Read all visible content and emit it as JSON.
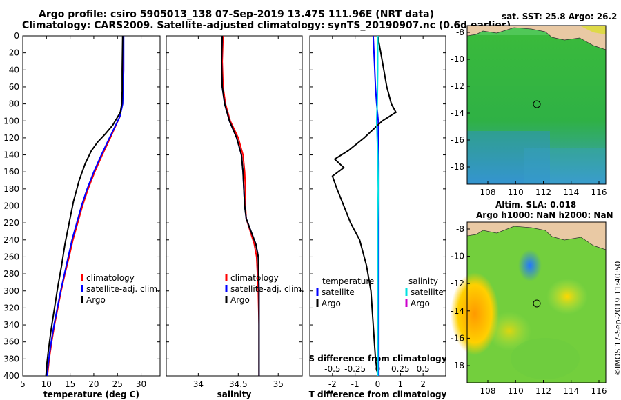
{
  "header": {
    "line1": "Argo profile: csiro 5905013_138 07-Sep-2019 13.47S 111.96E (NRT data)",
    "line2": "Climatology: CARS2009. Satellite-adjusted climatology: synTS_20190907.nc (0.6d earlier)"
  },
  "chart_data": [
    {
      "type": "line",
      "name": "temperature",
      "xlabel": "temperature (deg C)",
      "xlim": [
        5,
        34
      ],
      "xticks": [
        5,
        10,
        15,
        20,
        25,
        30
      ],
      "ylim": [
        400,
        0
      ],
      "yticks": [
        0,
        20,
        40,
        60,
        80,
        100,
        120,
        140,
        160,
        180,
        200,
        220,
        240,
        260,
        280,
        300,
        320,
        340,
        360,
        380,
        400
      ],
      "legend": [
        "climatology",
        "satellite-adj. clim.",
        "Argo"
      ],
      "series": [
        {
          "name": "climatology",
          "color": "#ff0000",
          "points": [
            [
              26.2,
              0
            ],
            [
              26.2,
              40
            ],
            [
              26.1,
              60
            ],
            [
              26.0,
              80
            ],
            [
              25.5,
              95
            ],
            [
              23.5,
              120
            ],
            [
              21.8,
              140
            ],
            [
              20.2,
              160
            ],
            [
              18.8,
              180
            ],
            [
              17.6,
              200
            ],
            [
              16.6,
              220
            ],
            [
              15.6,
              240
            ],
            [
              14.8,
              260
            ],
            [
              13.9,
              280
            ],
            [
              13.1,
              300
            ],
            [
              12.4,
              320
            ],
            [
              11.7,
              340
            ],
            [
              11.1,
              360
            ],
            [
              10.6,
              380
            ],
            [
              10.2,
              400
            ]
          ]
        },
        {
          "name": "satellite-adj. clim.",
          "color": "#0000ff",
          "points": [
            [
              26.3,
              0
            ],
            [
              26.3,
              40
            ],
            [
              26.2,
              60
            ],
            [
              26.1,
              80
            ],
            [
              25.5,
              95
            ],
            [
              23.3,
              120
            ],
            [
              21.6,
              140
            ],
            [
              20.0,
              160
            ],
            [
              18.6,
              180
            ],
            [
              17.4,
              200
            ],
            [
              16.4,
              220
            ],
            [
              15.4,
              240
            ],
            [
              14.6,
              260
            ],
            [
              13.8,
              280
            ],
            [
              13.0,
              300
            ],
            [
              12.3,
              320
            ],
            [
              11.6,
              340
            ],
            [
              11.0,
              360
            ],
            [
              10.5,
              380
            ],
            [
              10.1,
              400
            ]
          ]
        },
        {
          "name": "Argo",
          "color": "#000000",
          "points": [
            [
              26.1,
              0
            ],
            [
              26.0,
              40
            ],
            [
              26.0,
              65
            ],
            [
              25.9,
              80
            ],
            [
              25.6,
              90
            ],
            [
              24.0,
              105
            ],
            [
              22.5,
              115
            ],
            [
              20.8,
              125
            ],
            [
              19.5,
              135
            ],
            [
              18.2,
              150
            ],
            [
              16.9,
              170
            ],
            [
              15.7,
              195
            ],
            [
              14.8,
              220
            ],
            [
              13.9,
              245
            ],
            [
              13.2,
              270
            ],
            [
              12.4,
              295
            ],
            [
              11.7,
              320
            ],
            [
              11.0,
              345
            ],
            [
              10.4,
              370
            ],
            [
              10.1,
              385
            ],
            [
              9.9,
              400
            ]
          ]
        }
      ]
    },
    {
      "type": "line",
      "name": "salinity",
      "xlabel": "salinity",
      "xlim": [
        33.6,
        35.3
      ],
      "xticks": [
        34,
        34.5,
        35
      ],
      "xticklabels": [
        "34",
        "34.5",
        "35"
      ],
      "ylim": [
        400,
        0
      ],
      "legend": [
        "climatology",
        "satellite-adj. clim.",
        "Argo"
      ],
      "series": [
        {
          "name": "climatology",
          "color": "#ff0000",
          "points": [
            [
              34.31,
              0
            ],
            [
              34.3,
              30
            ],
            [
              34.31,
              60
            ],
            [
              34.34,
              80
            ],
            [
              34.4,
              100
            ],
            [
              34.5,
              120
            ],
            [
              34.56,
              140
            ],
            [
              34.58,
              160
            ],
            [
              34.59,
              180
            ],
            [
              34.59,
              200
            ],
            [
              34.6,
              215
            ],
            [
              34.65,
              230
            ],
            [
              34.7,
              245
            ],
            [
              34.73,
              260
            ],
            [
              34.75,
              300
            ],
            [
              34.76,
              340
            ],
            [
              34.76,
              400
            ]
          ]
        },
        {
          "name": "satellite-adj. clim.",
          "color": "#0000ff",
          "points": [
            [
              34.3,
              0
            ],
            [
              34.29,
              30
            ],
            [
              34.3,
              60
            ],
            [
              34.33,
              80
            ],
            [
              34.39,
              100
            ],
            [
              34.48,
              120
            ],
            [
              34.54,
              140
            ],
            [
              34.56,
              160
            ],
            [
              34.57,
              180
            ],
            [
              34.58,
              200
            ],
            [
              34.6,
              215
            ],
            [
              34.66,
              230
            ],
            [
              34.72,
              245
            ],
            [
              34.75,
              260
            ],
            [
              34.76,
              300
            ],
            [
              34.76,
              340
            ],
            [
              34.76,
              400
            ]
          ]
        },
        {
          "name": "Argo",
          "color": "#000000",
          "points": [
            [
              34.3,
              0
            ],
            [
              34.29,
              30
            ],
            [
              34.3,
              60
            ],
            [
              34.33,
              80
            ],
            [
              34.39,
              100
            ],
            [
              34.48,
              120
            ],
            [
              34.54,
              140
            ],
            [
              34.56,
              160
            ],
            [
              34.57,
              180
            ],
            [
              34.58,
              200
            ],
            [
              34.6,
              215
            ],
            [
              34.66,
              230
            ],
            [
              34.72,
              245
            ],
            [
              34.75,
              260
            ],
            [
              34.76,
              300
            ],
            [
              34.76,
              340
            ],
            [
              34.76,
              400
            ]
          ]
        }
      ]
    },
    {
      "type": "line",
      "name": "difference",
      "xlabel": "T difference from climatology",
      "xlim": [
        -3,
        3
      ],
      "xticks": [
        -2,
        -1,
        0,
        1,
        2
      ],
      "secondary_xlabel": "S difference from climatology",
      "secondary_xlim": [
        -0.75,
        0.75
      ],
      "secondary_xticks": [
        -0.5,
        -0.25,
        0,
        0.25,
        0.5
      ],
      "ylim": [
        400,
        0
      ],
      "legend_temperature_title": "temperature",
      "legend_salinity_title": "salinity",
      "legend": [
        "satellite",
        "Argo",
        "satellite",
        "Argo"
      ],
      "series": [
        {
          "name": "temperature satellite",
          "color": "#0000ff",
          "points": [
            [
              -0.2,
              0
            ],
            [
              -0.15,
              30
            ],
            [
              -0.1,
              60
            ],
            [
              -0.05,
              80
            ],
            [
              0.02,
              100
            ],
            [
              0.05,
              150
            ],
            [
              0.05,
              200
            ],
            [
              0.05,
              250
            ],
            [
              0.05,
              300
            ],
            [
              0.05,
              350
            ],
            [
              0.05,
              400
            ]
          ]
        },
        {
          "name": "temperature Argo",
          "color": "#000000",
          "points": [
            [
              0.0,
              0
            ],
            [
              0.2,
              30
            ],
            [
              0.4,
              60
            ],
            [
              0.6,
              80
            ],
            [
              0.8,
              90
            ],
            [
              0.5,
              95
            ],
            [
              0.2,
              100
            ],
            [
              -0.6,
              120
            ],
            [
              -1.3,
              135
            ],
            [
              -1.9,
              145
            ],
            [
              -1.5,
              155
            ],
            [
              -2.0,
              165
            ],
            [
              -1.8,
              180
            ],
            [
              -1.5,
              200
            ],
            [
              -1.2,
              220
            ],
            [
              -0.8,
              240
            ],
            [
              -0.5,
              270
            ],
            [
              -0.3,
              300
            ],
            [
              -0.2,
              340
            ],
            [
              -0.1,
              380
            ],
            [
              0.0,
              400
            ]
          ]
        },
        {
          "name": "salinity satellite",
          "color": "#00e0e0",
          "points": [
            [
              0.0,
              0
            ],
            [
              0.0,
              40
            ],
            [
              -0.02,
              80
            ],
            [
              -0.05,
              100
            ],
            [
              0.0,
              140
            ],
            [
              0.02,
              180
            ],
            [
              0.0,
              220
            ],
            [
              0.0,
              260
            ],
            [
              0.0,
              300
            ],
            [
              0.0,
              340
            ],
            [
              0.0,
              400
            ]
          ]
        },
        {
          "name": "salinity Argo",
          "color": "#cc00cc",
          "points": []
        }
      ]
    }
  ],
  "maps": {
    "sst": {
      "title": "sat. SST: 25.8 Argo: 26.2",
      "xticks": [
        "108",
        "110",
        "112",
        "114",
        "116"
      ],
      "yticks": [
        "-8",
        "-10",
        "-12",
        "-14",
        "-16",
        "-18"
      ],
      "colors": [
        "#1fae1f",
        "#41c84a",
        "#2e8bd0",
        "#e9c9a4"
      ]
    },
    "sla": {
      "title1": "Altim. SLA: 0.018",
      "title2": "Argo h1000: NaN h2000: NaN",
      "xticks": [
        "108",
        "110",
        "112",
        "114",
        "116"
      ],
      "yticks": [
        "-8",
        "-10",
        "-12",
        "-14",
        "-16",
        "-18"
      ],
      "colors": [
        "#1fae1f",
        "#b5e632",
        "#ffe600",
        "#ff9900",
        "#2f9bff",
        "#e9c9a4"
      ]
    }
  },
  "footer": {
    "credit": "©IMOS 17-Sep-2019 11:40:50"
  }
}
